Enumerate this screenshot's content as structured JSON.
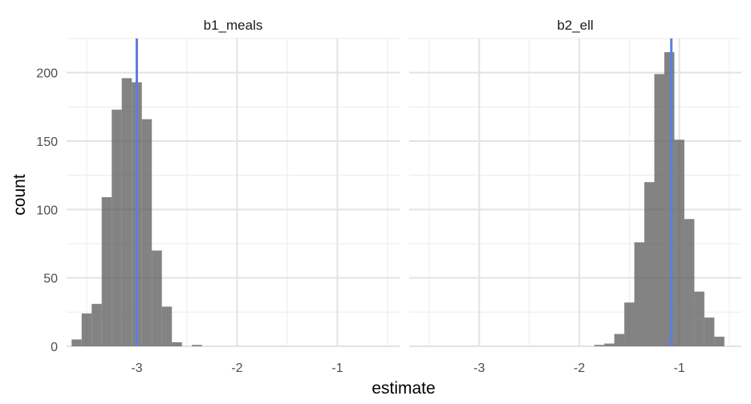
{
  "chart_data": {
    "type": "histogram",
    "xlabel": "estimate",
    "ylabel": "count",
    "x_range": [
      -3.7,
      -0.38
    ],
    "y_range": [
      0,
      225
    ],
    "y_ticks": [
      0,
      50,
      100,
      150,
      200
    ],
    "x_ticks": [
      -3,
      -2,
      -1
    ],
    "x_minor_ticks": [
      -3.5,
      -2.5,
      -1.5,
      -0.5
    ],
    "bin_width": 0.1,
    "grid": true,
    "bar_color": "#595959",
    "vline_color": "#5b7fe0",
    "panels": [
      {
        "title": "b1_meals",
        "vline": -3.0,
        "bins": [
          {
            "x": -3.6,
            "count": 5
          },
          {
            "x": -3.5,
            "count": 24
          },
          {
            "x": -3.4,
            "count": 31
          },
          {
            "x": -3.3,
            "count": 109
          },
          {
            "x": -3.2,
            "count": 173
          },
          {
            "x": -3.1,
            "count": 196
          },
          {
            "x": -3.0,
            "count": 193
          },
          {
            "x": -2.9,
            "count": 166
          },
          {
            "x": -2.8,
            "count": 70
          },
          {
            "x": -2.7,
            "count": 29
          },
          {
            "x": -2.6,
            "count": 3
          },
          {
            "x": -2.4,
            "count": 1
          }
        ]
      },
      {
        "title": "b2_ell",
        "vline": -1.08,
        "bins": [
          {
            "x": -1.8,
            "count": 1
          },
          {
            "x": -1.7,
            "count": 2
          },
          {
            "x": -1.6,
            "count": 9
          },
          {
            "x": -1.5,
            "count": 32
          },
          {
            "x": -1.4,
            "count": 76
          },
          {
            "x": -1.3,
            "count": 120
          },
          {
            "x": -1.2,
            "count": 199
          },
          {
            "x": -1.1,
            "count": 215
          },
          {
            "x": -1.0,
            "count": 151
          },
          {
            "x": -0.9,
            "count": 93
          },
          {
            "x": -0.8,
            "count": 40
          },
          {
            "x": -0.7,
            "count": 21
          },
          {
            "x": -0.6,
            "count": 7
          }
        ]
      }
    ]
  }
}
